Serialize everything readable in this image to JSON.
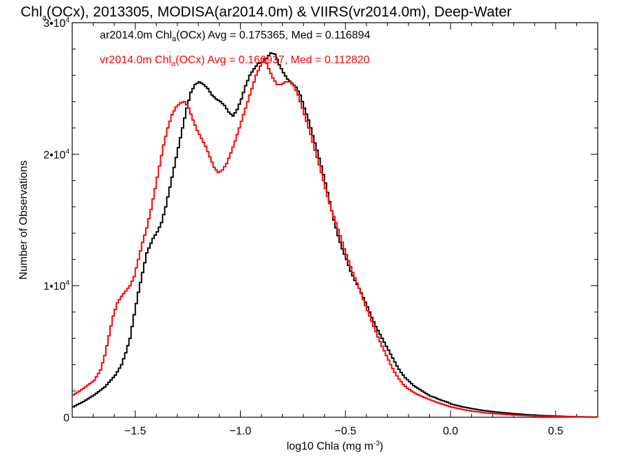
{
  "chart_data": {
    "type": "line",
    "title": {
      "pre": "Chl",
      "sub": "a",
      "post": "(OCx), 2013305, MODISA(ar2014.0m) & VIIRS(vr2014.0m), Deep-Water"
    },
    "xlabel": {
      "pre": "log10 Chla (mg m",
      "sup": "-3",
      "post": ")"
    },
    "ylabel": "Number of Observations",
    "xlim": [
      -1.8,
      0.7
    ],
    "ylim": [
      0,
      30000
    ],
    "x_ticks": [
      {
        "value": -1.5,
        "label": "−1.5"
      },
      {
        "value": -1.0,
        "label": "−1.0"
      },
      {
        "value": -0.5,
        "label": "−0.5"
      },
      {
        "value": 0.0,
        "label": "0.0"
      },
      {
        "value": 0.5,
        "label": "0.5"
      }
    ],
    "y_ticks": [
      {
        "value": 0,
        "base": "0",
        "exp": ""
      },
      {
        "value": 10000,
        "base": "1•10",
        "exp": "4"
      },
      {
        "value": 20000,
        "base": "2•10",
        "exp": "4"
      },
      {
        "value": 30000,
        "base": "3•10",
        "exp": "4"
      }
    ],
    "grid": false,
    "legend_position": "top-left",
    "series": [
      {
        "name_pre": "ar2014.0m Chl",
        "name_sub": "a",
        "name_post": "(OCx) Avg = 0.175365, Med = 0.116894",
        "color": "#000000",
        "points": [
          [
            -1.8,
            800
          ],
          [
            -1.75,
            1200
          ],
          [
            -1.7,
            1700
          ],
          [
            -1.65,
            2300
          ],
          [
            -1.6,
            3200
          ],
          [
            -1.57,
            4000
          ],
          [
            -1.55,
            4900
          ],
          [
            -1.53,
            6000
          ],
          [
            -1.51,
            7800
          ],
          [
            -1.49,
            9500
          ],
          [
            -1.47,
            11000
          ],
          [
            -1.45,
            12500
          ],
          [
            -1.42,
            13600
          ],
          [
            -1.4,
            14100
          ],
          [
            -1.38,
            14800
          ],
          [
            -1.36,
            16000
          ],
          [
            -1.34,
            17500
          ],
          [
            -1.32,
            19000
          ],
          [
            -1.3,
            20500
          ],
          [
            -1.28,
            22000
          ],
          [
            -1.26,
            23500
          ],
          [
            -1.24,
            24700
          ],
          [
            -1.22,
            25300
          ],
          [
            -1.2,
            25500
          ],
          [
            -1.18,
            25300
          ],
          [
            -1.16,
            25000
          ],
          [
            -1.14,
            24500
          ],
          [
            -1.12,
            24200
          ],
          [
            -1.1,
            24000
          ],
          [
            -1.08,
            23700
          ],
          [
            -1.06,
            23200
          ],
          [
            -1.04,
            22900
          ],
          [
            -1.02,
            23400
          ],
          [
            -1.0,
            24200
          ],
          [
            -0.98,
            25200
          ],
          [
            -0.96,
            26000
          ],
          [
            -0.94,
            26500
          ],
          [
            -0.92,
            26900
          ],
          [
            -0.9,
            27000
          ],
          [
            -0.88,
            27300
          ],
          [
            -0.86,
            27700
          ],
          [
            -0.84,
            27600
          ],
          [
            -0.82,
            26800
          ],
          [
            -0.8,
            26200
          ],
          [
            -0.78,
            25700
          ],
          [
            -0.76,
            25400
          ],
          [
            -0.74,
            25100
          ],
          [
            -0.72,
            24500
          ],
          [
            -0.7,
            23500
          ],
          [
            -0.68,
            22600
          ],
          [
            -0.66,
            21400
          ],
          [
            -0.64,
            20300
          ],
          [
            -0.62,
            19100
          ],
          [
            -0.6,
            17800
          ],
          [
            -0.58,
            16400
          ],
          [
            -0.56,
            15000
          ],
          [
            -0.54,
            13800
          ],
          [
            -0.52,
            12800
          ],
          [
            -0.5,
            12000
          ],
          [
            -0.48,
            11100
          ],
          [
            -0.46,
            10400
          ],
          [
            -0.44,
            9800
          ],
          [
            -0.42,
            9100
          ],
          [
            -0.4,
            8400
          ],
          [
            -0.38,
            7600
          ],
          [
            -0.36,
            6900
          ],
          [
            -0.34,
            6300
          ],
          [
            -0.32,
            5700
          ],
          [
            -0.3,
            5100
          ],
          [
            -0.28,
            4500
          ],
          [
            -0.26,
            3900
          ],
          [
            -0.24,
            3400
          ],
          [
            -0.22,
            3000
          ],
          [
            -0.2,
            2700
          ],
          [
            -0.18,
            2400
          ],
          [
            -0.16,
            2200
          ],
          [
            -0.14,
            2000
          ],
          [
            -0.12,
            1800
          ],
          [
            -0.1,
            1600
          ],
          [
            -0.08,
            1500
          ],
          [
            -0.05,
            1300
          ],
          [
            -0.02,
            1150
          ],
          [
            0.0,
            1000
          ],
          [
            0.05,
            800
          ],
          [
            0.1,
            650
          ],
          [
            0.15,
            520
          ],
          [
            0.2,
            420
          ],
          [
            0.25,
            340
          ],
          [
            0.3,
            270
          ],
          [
            0.35,
            210
          ],
          [
            0.4,
            160
          ],
          [
            0.45,
            120
          ],
          [
            0.5,
            90
          ],
          [
            0.55,
            60
          ],
          [
            0.6,
            40
          ],
          [
            0.65,
            25
          ],
          [
            0.7,
            15
          ]
        ]
      },
      {
        "name_pre": "vr2014.0m Chl",
        "name_sub": "a",
        "name_post": "(OCx) Avg = 0.166937, Med = 0.112820",
        "color": "#ff0000",
        "points": [
          [
            -1.8,
            1700
          ],
          [
            -1.75,
            2200
          ],
          [
            -1.7,
            2800
          ],
          [
            -1.67,
            3600
          ],
          [
            -1.65,
            4700
          ],
          [
            -1.63,
            6200
          ],
          [
            -1.61,
            7700
          ],
          [
            -1.59,
            8700
          ],
          [
            -1.57,
            9200
          ],
          [
            -1.55,
            9600
          ],
          [
            -1.53,
            10000
          ],
          [
            -1.51,
            10700
          ],
          [
            -1.49,
            12000
          ],
          [
            -1.47,
            13300
          ],
          [
            -1.45,
            14400
          ],
          [
            -1.43,
            15800
          ],
          [
            -1.41,
            17400
          ],
          [
            -1.39,
            19100
          ],
          [
            -1.37,
            20700
          ],
          [
            -1.35,
            22000
          ],
          [
            -1.33,
            23000
          ],
          [
            -1.31,
            23600
          ],
          [
            -1.29,
            23900
          ],
          [
            -1.27,
            24000
          ],
          [
            -1.25,
            23500
          ],
          [
            -1.23,
            22600
          ],
          [
            -1.21,
            21800
          ],
          [
            -1.19,
            21200
          ],
          [
            -1.17,
            20600
          ],
          [
            -1.15,
            19800
          ],
          [
            -1.13,
            19000
          ],
          [
            -1.11,
            18600
          ],
          [
            -1.09,
            18800
          ],
          [
            -1.07,
            19300
          ],
          [
            -1.05,
            20100
          ],
          [
            -1.03,
            21000
          ],
          [
            -1.01,
            22000
          ],
          [
            -0.99,
            23000
          ],
          [
            -0.97,
            24000
          ],
          [
            -0.95,
            25000
          ],
          [
            -0.93,
            26000
          ],
          [
            -0.91,
            26700
          ],
          [
            -0.89,
            27300
          ],
          [
            -0.87,
            26500
          ],
          [
            -0.85,
            25800
          ],
          [
            -0.83,
            25300
          ],
          [
            -0.81,
            25300
          ],
          [
            -0.79,
            25500
          ],
          [
            -0.77,
            25500
          ],
          [
            -0.75,
            25200
          ],
          [
            -0.73,
            24500
          ],
          [
            -0.71,
            23500
          ],
          [
            -0.69,
            22500
          ],
          [
            -0.67,
            21500
          ],
          [
            -0.65,
            20300
          ],
          [
            -0.63,
            19200
          ],
          [
            -0.61,
            18000
          ],
          [
            -0.59,
            16800
          ],
          [
            -0.57,
            15700
          ],
          [
            -0.55,
            14800
          ],
          [
            -0.53,
            13800
          ],
          [
            -0.51,
            12800
          ],
          [
            -0.49,
            11900
          ],
          [
            -0.47,
            11000
          ],
          [
            -0.45,
            10200
          ],
          [
            -0.43,
            9400
          ],
          [
            -0.41,
            8500
          ],
          [
            -0.39,
            7700
          ],
          [
            -0.37,
            6900
          ],
          [
            -0.35,
            6100
          ],
          [
            -0.33,
            5400
          ],
          [
            -0.31,
            4700
          ],
          [
            -0.29,
            4000
          ],
          [
            -0.27,
            3400
          ],
          [
            -0.25,
            2900
          ],
          [
            -0.23,
            2500
          ],
          [
            -0.21,
            2200
          ],
          [
            -0.19,
            2000
          ],
          [
            -0.17,
            1800
          ],
          [
            -0.15,
            1650
          ],
          [
            -0.12,
            1450
          ],
          [
            -0.09,
            1250
          ],
          [
            -0.06,
            1080
          ],
          [
            -0.03,
            920
          ],
          [
            0.0,
            780
          ],
          [
            0.05,
            600
          ],
          [
            0.1,
            460
          ],
          [
            0.15,
            360
          ],
          [
            0.2,
            280
          ],
          [
            0.25,
            220
          ],
          [
            0.3,
            170
          ],
          [
            0.35,
            130
          ],
          [
            0.4,
            100
          ],
          [
            0.45,
            75
          ],
          [
            0.5,
            55
          ],
          [
            0.55,
            40
          ],
          [
            0.6,
            28
          ],
          [
            0.65,
            18
          ],
          [
            0.7,
            12
          ]
        ]
      }
    ]
  }
}
